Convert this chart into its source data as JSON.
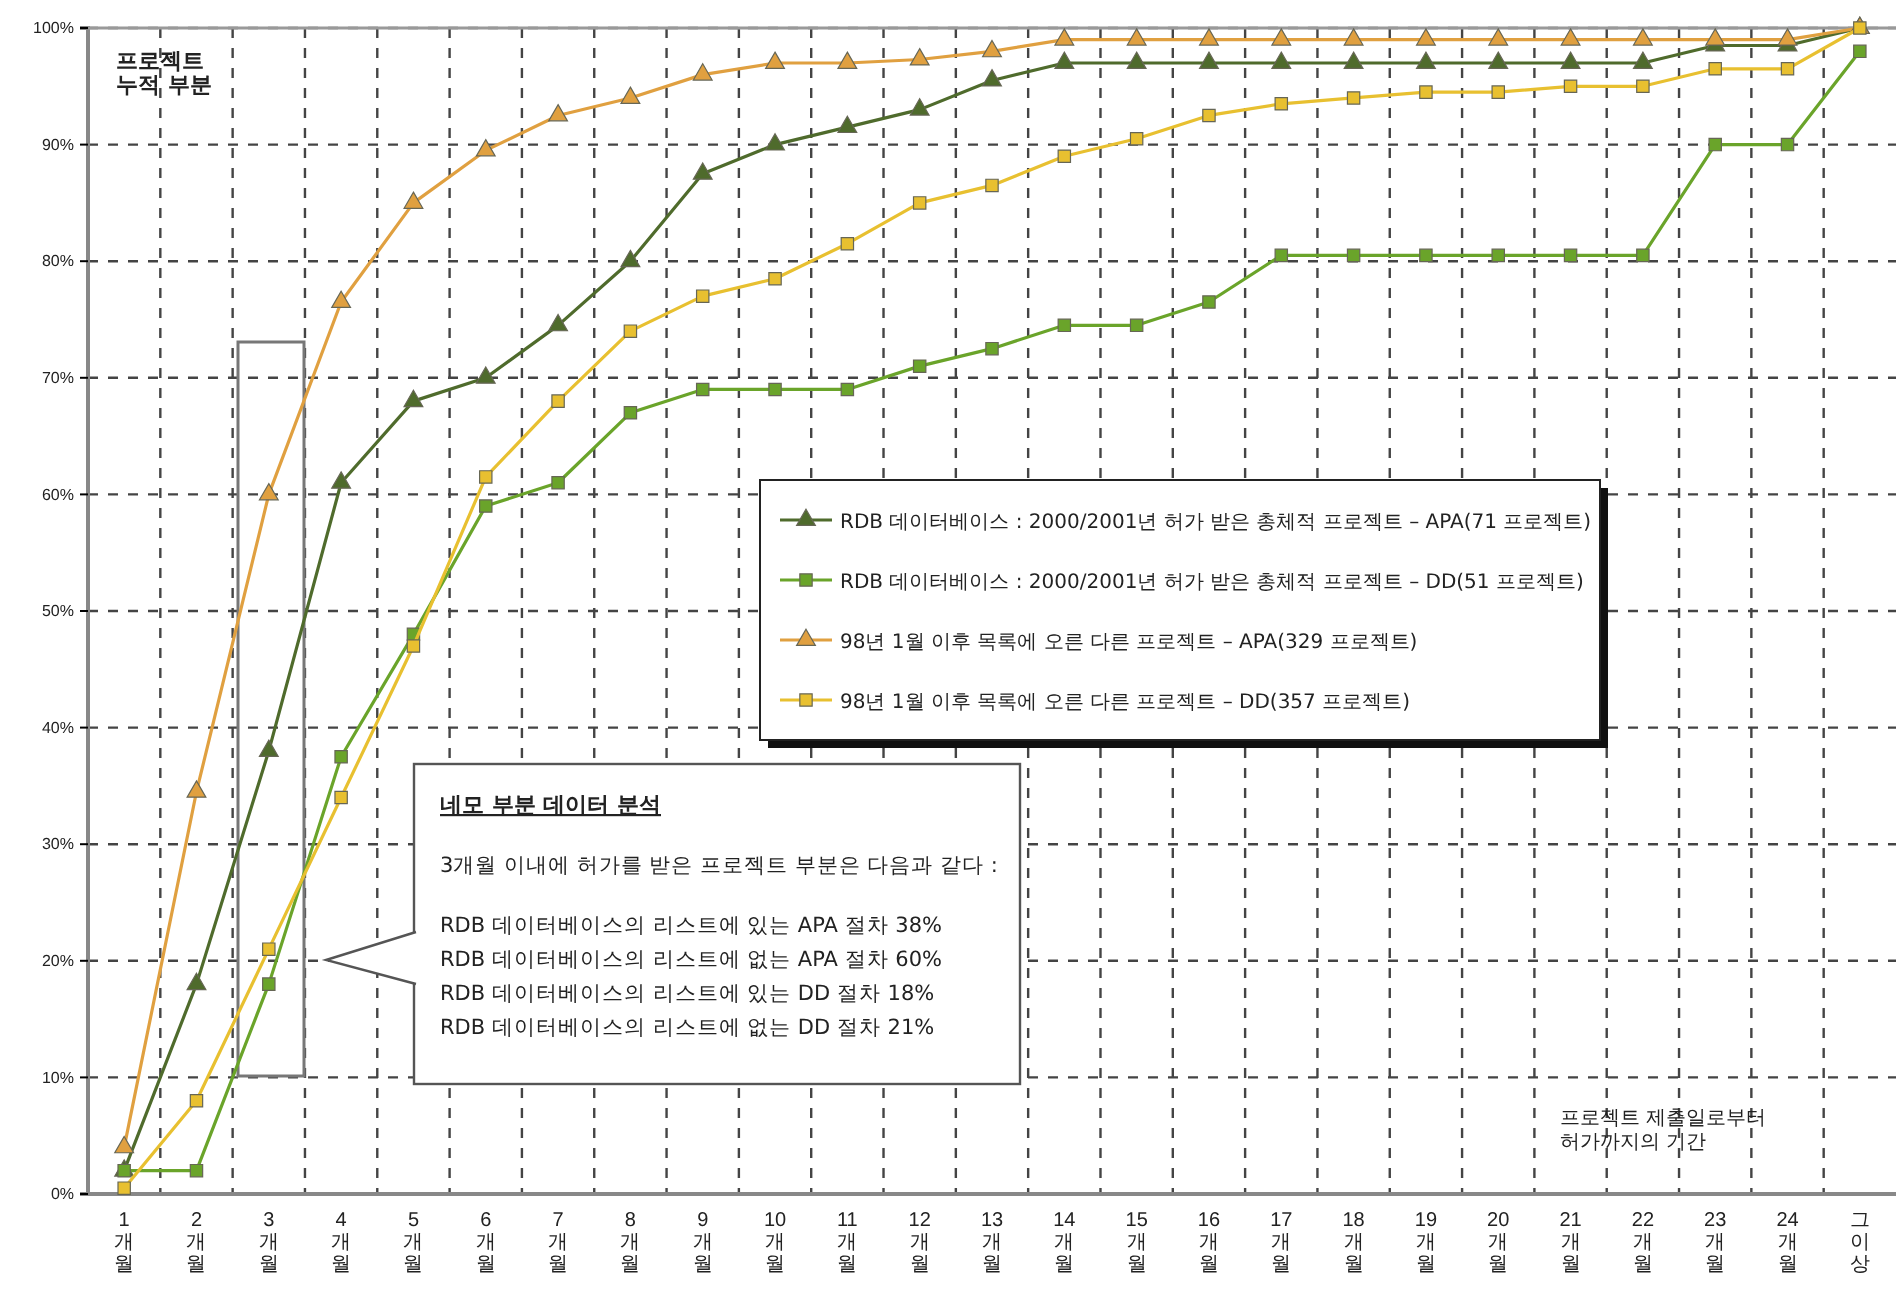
{
  "chart_data": {
    "type": "line",
    "ylabel": "프로젝트 누적 부분",
    "xlabel": "프로젝트 제출일로부터 허가까지의 기간",
    "categories": [
      "1개월",
      "2개월",
      "3개월",
      "4개월",
      "5개월",
      "6개월",
      "7개월",
      "8개월",
      "9개월",
      "10개월",
      "11개월",
      "12개월",
      "13개월",
      "14개월",
      "15개월",
      "16개월",
      "17개월",
      "18개월",
      "19개월",
      "20개월",
      "21개월",
      "22개월",
      "23개월",
      "24개월",
      "그 이상"
    ],
    "series": [
      {
        "name": "RDB 데이터베이스 : 2000/2001년 허가 받은 총체적 프로젝트 – APA(71 프로젝트)",
        "color": "#4f6b2c",
        "marker": "triangle",
        "values": [
          2,
          18,
          38,
          61,
          68,
          70,
          74.5,
          80,
          87.5,
          90,
          91.5,
          93,
          95.5,
          97,
          97,
          97,
          97,
          97,
          97,
          97,
          97,
          97,
          98.5,
          98.5,
          100
        ]
      },
      {
        "name": "RDB 데이터베이스 : 2000/2001년 허가 받은 총체적 프로젝트 – DD(51 프로젝트)",
        "color": "#6aa42a",
        "marker": "square",
        "values": [
          2,
          2,
          18,
          37.5,
          48,
          59,
          61,
          67,
          69,
          69,
          69,
          71,
          72.5,
          74.5,
          74.5,
          76.5,
          80.5,
          80.5,
          80.5,
          80.5,
          80.5,
          80.5,
          90,
          90,
          98
        ]
      },
      {
        "name": "98년 1월 이후 목록에 오른 다른 프로젝트 – APA(329 프로젝트)",
        "color": "#e0a040",
        "marker": "triangle",
        "values": [
          4,
          34.5,
          60,
          76.5,
          85,
          89.5,
          92.5,
          94,
          96,
          97,
          97,
          97.3,
          98,
          99,
          99,
          99,
          99,
          99,
          99,
          99,
          99,
          99,
          99,
          99,
          100
        ]
      },
      {
        "name": "98년 1월 이후 목록에 오른 다른 프로젝트 – DD(357 프로젝트)",
        "color": "#e8c030",
        "marker": "square",
        "values": [
          0.5,
          8,
          21,
          34,
          47,
          61.5,
          68,
          74,
          77,
          78.5,
          81.5,
          85,
          86.5,
          89,
          90.5,
          92.5,
          93.5,
          94,
          94.5,
          94.5,
          95,
          95,
          96.5,
          96.5,
          100
        ]
      }
    ],
    "ylim": [
      0,
      100
    ],
    "yticks": [
      {
        "value": 0,
        "label": "0%"
      },
      {
        "value": 10,
        "label": "10%"
      },
      {
        "value": 20,
        "label": "20%"
      },
      {
        "value": 30,
        "label": "30%"
      },
      {
        "value": 40,
        "label": "40%"
      },
      {
        "value": 50,
        "label": "50%"
      },
      {
        "value": 60,
        "label": "60%"
      },
      {
        "value": 70,
        "label": "70%"
      },
      {
        "value": 80,
        "label": "80%"
      },
      {
        "value": 90,
        "label": "90%"
      },
      {
        "value": 100,
        "label": "100%"
      }
    ],
    "grid": true,
    "legend": "right",
    "line_style": "solid",
    "annotations": [
      "네모 부분 데이터 분석",
      "3개월 이내에 허가를 받은 프로젝트 부분은 다음과 같다 :",
      "RDB 데이터베이스의 리스트에 있는 APA 절차 38%",
      "RDB 데이터베이스의 리스트에 없는 APA 절차 60%",
      "RDB 데이터베이스의 리스트에 있는 DD 절차 18%",
      "RDB 데이터베이스의 리스트에 없는 DD 절차 21%"
    ]
  }
}
